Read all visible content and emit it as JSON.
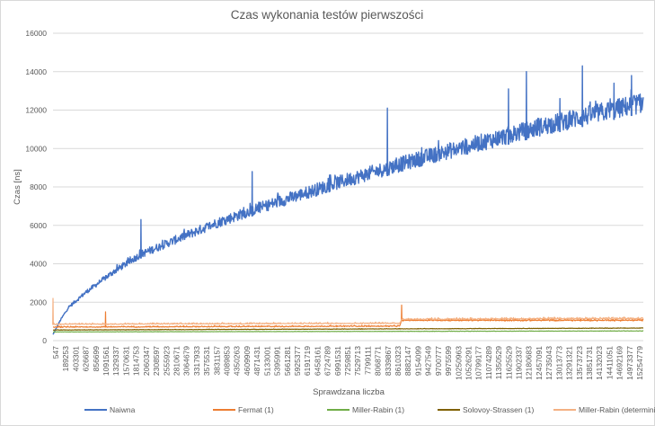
{
  "chart_data": {
    "type": "line",
    "title": "Czas wykonania testów pierwszości",
    "xlabel": "Sprawdzana liczba",
    "ylabel": "Czas [ns]",
    "ylim": [
      0,
      16000
    ],
    "yticks": [
      0,
      2000,
      4000,
      6000,
      8000,
      10000,
      12000,
      14000,
      16000
    ],
    "grid": "horizontal",
    "legend_position": "bottom",
    "x_tick_labels": [
      "547",
      "189253",
      "403301",
      "626687",
      "856699",
      "1091561",
      "1329337",
      "1570631",
      "1814753",
      "2060347",
      "2308597",
      "2555923",
      "2810671",
      "3064679",
      "3317933",
      "3575531",
      "3831157",
      "4089853",
      "4350263",
      "4609909",
      "4871431",
      "5133001",
      "5395991",
      "5661281",
      "5925377",
      "6191719",
      "6458161",
      "6724789",
      "6991531",
      "7259851",
      "7529713",
      "7799111",
      "8068771",
      "8339867",
      "8610323",
      "8882147",
      "9154099",
      "9427549",
      "9700777",
      "9975599",
      "10250963",
      "10526291",
      "10799177",
      "11074289",
      "11350529",
      "11625529",
      "11902337",
      "12180683",
      "12457091",
      "12735043",
      "13013773",
      "13291321",
      "13573723",
      "13851731",
      "14132023",
      "14411051",
      "14692169",
      "14973377",
      "15254779"
    ],
    "x_range": [
      547,
      15500000
    ],
    "series": [
      {
        "name": "Naiwna",
        "color": "#4472C4",
        "x": [
          547,
          189253,
          403301,
          856699,
          1570631,
          2308597,
          3317933,
          4350263,
          5395991,
          6458161,
          7529713,
          8610323,
          9700777,
          10799177,
          11902337,
          13013773,
          14132023,
          15254779,
          15500000
        ],
        "values": [
          300,
          1000,
          1650,
          2400,
          3400,
          4300,
          5100,
          5900,
          6600,
          7250,
          7900,
          8500,
          9100,
          9650,
          10200,
          10750,
          11250,
          11750,
          11850
        ],
        "spikes": [
          {
            "x": 2310000,
            "y": 6300
          },
          {
            "x": 5230000,
            "y": 8800
          },
          {
            "x": 8780000,
            "y": 12100
          },
          {
            "x": 11960000,
            "y": 13100
          },
          {
            "x": 12430000,
            "y": 14000
          },
          {
            "x": 13310000,
            "y": 12600
          },
          {
            "x": 13900000,
            "y": 14300
          },
          {
            "x": 14730000,
            "y": 13400
          },
          {
            "x": 15190000,
            "y": 13800
          }
        ]
      },
      {
        "name": "Fermat (1)",
        "color": "#ED7D31",
        "x": [
          547,
          9100000,
          9154099,
          15500000
        ],
        "values": [
          700,
          750,
          1050,
          1050
        ],
        "spikes": [
          {
            "x": 1380000,
            "y": 1500
          },
          {
            "x": 9154099,
            "y": 1850
          }
        ]
      },
      {
        "name": "Miller-Rabin (1)",
        "color": "#70AD47",
        "x": [
          547,
          15500000
        ],
        "values": [
          450,
          500
        ]
      },
      {
        "name": "Solovoy-Strassen (1)",
        "color": "#7F6000",
        "x": [
          547,
          15500000
        ],
        "values": [
          550,
          650
        ]
      },
      {
        "name": "Miller-Rabin (deterministyczny)",
        "color": "#F4B183",
        "x": [
          547,
          9100000,
          9154099,
          15500000
        ],
        "values": [
          850,
          900,
          1100,
          1150
        ],
        "spikes": [
          {
            "x": 547,
            "y": 2200
          }
        ]
      }
    ]
  }
}
